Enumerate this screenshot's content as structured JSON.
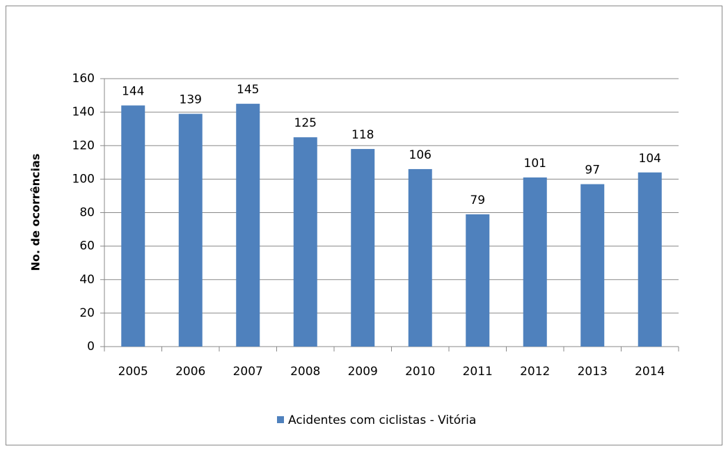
{
  "chart_data": {
    "type": "bar",
    "y_label": "No. de ocorrências",
    "categories": [
      "2005",
      "2006",
      "2007",
      "2008",
      "2009",
      "2010",
      "2011",
      "2012",
      "2013",
      "2014"
    ],
    "series": [
      {
        "name": "Acidentes com ciclistas - Vitória",
        "color": "#4f81bd",
        "values": [
          144,
          139,
          145,
          125,
          118,
          106,
          79,
          101,
          97,
          104
        ]
      }
    ],
    "ylim": [
      0,
      160
    ],
    "yticks": [
      0,
      20,
      40,
      60,
      80,
      100,
      120,
      140,
      160
    ],
    "grid": true,
    "legend": "bottom"
  }
}
